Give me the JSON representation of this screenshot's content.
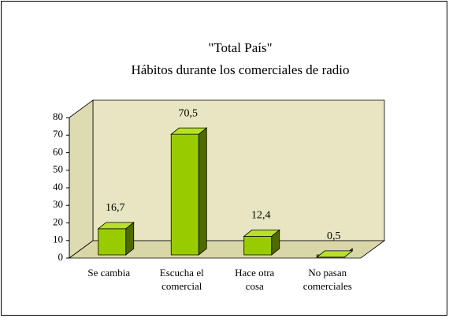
{
  "chart_data": {
    "type": "bar3d",
    "title": "\"Total País\"",
    "subtitle": "Hábitos durante los comerciales de radio",
    "categories": [
      "Se cambia",
      "Escucha el comercial",
      "Hace otra cosa",
      "No pasan comerciales"
    ],
    "values": [
      16.7,
      70.5,
      12.4,
      0.5
    ],
    "value_labels": [
      "16,7",
      "70,5",
      "12,4",
      "0,5"
    ],
    "color": "#99cc00",
    "ylim": [
      0,
      80
    ],
    "yticks": [
      0,
      10,
      20,
      30,
      40,
      50,
      60,
      70,
      80
    ]
  }
}
